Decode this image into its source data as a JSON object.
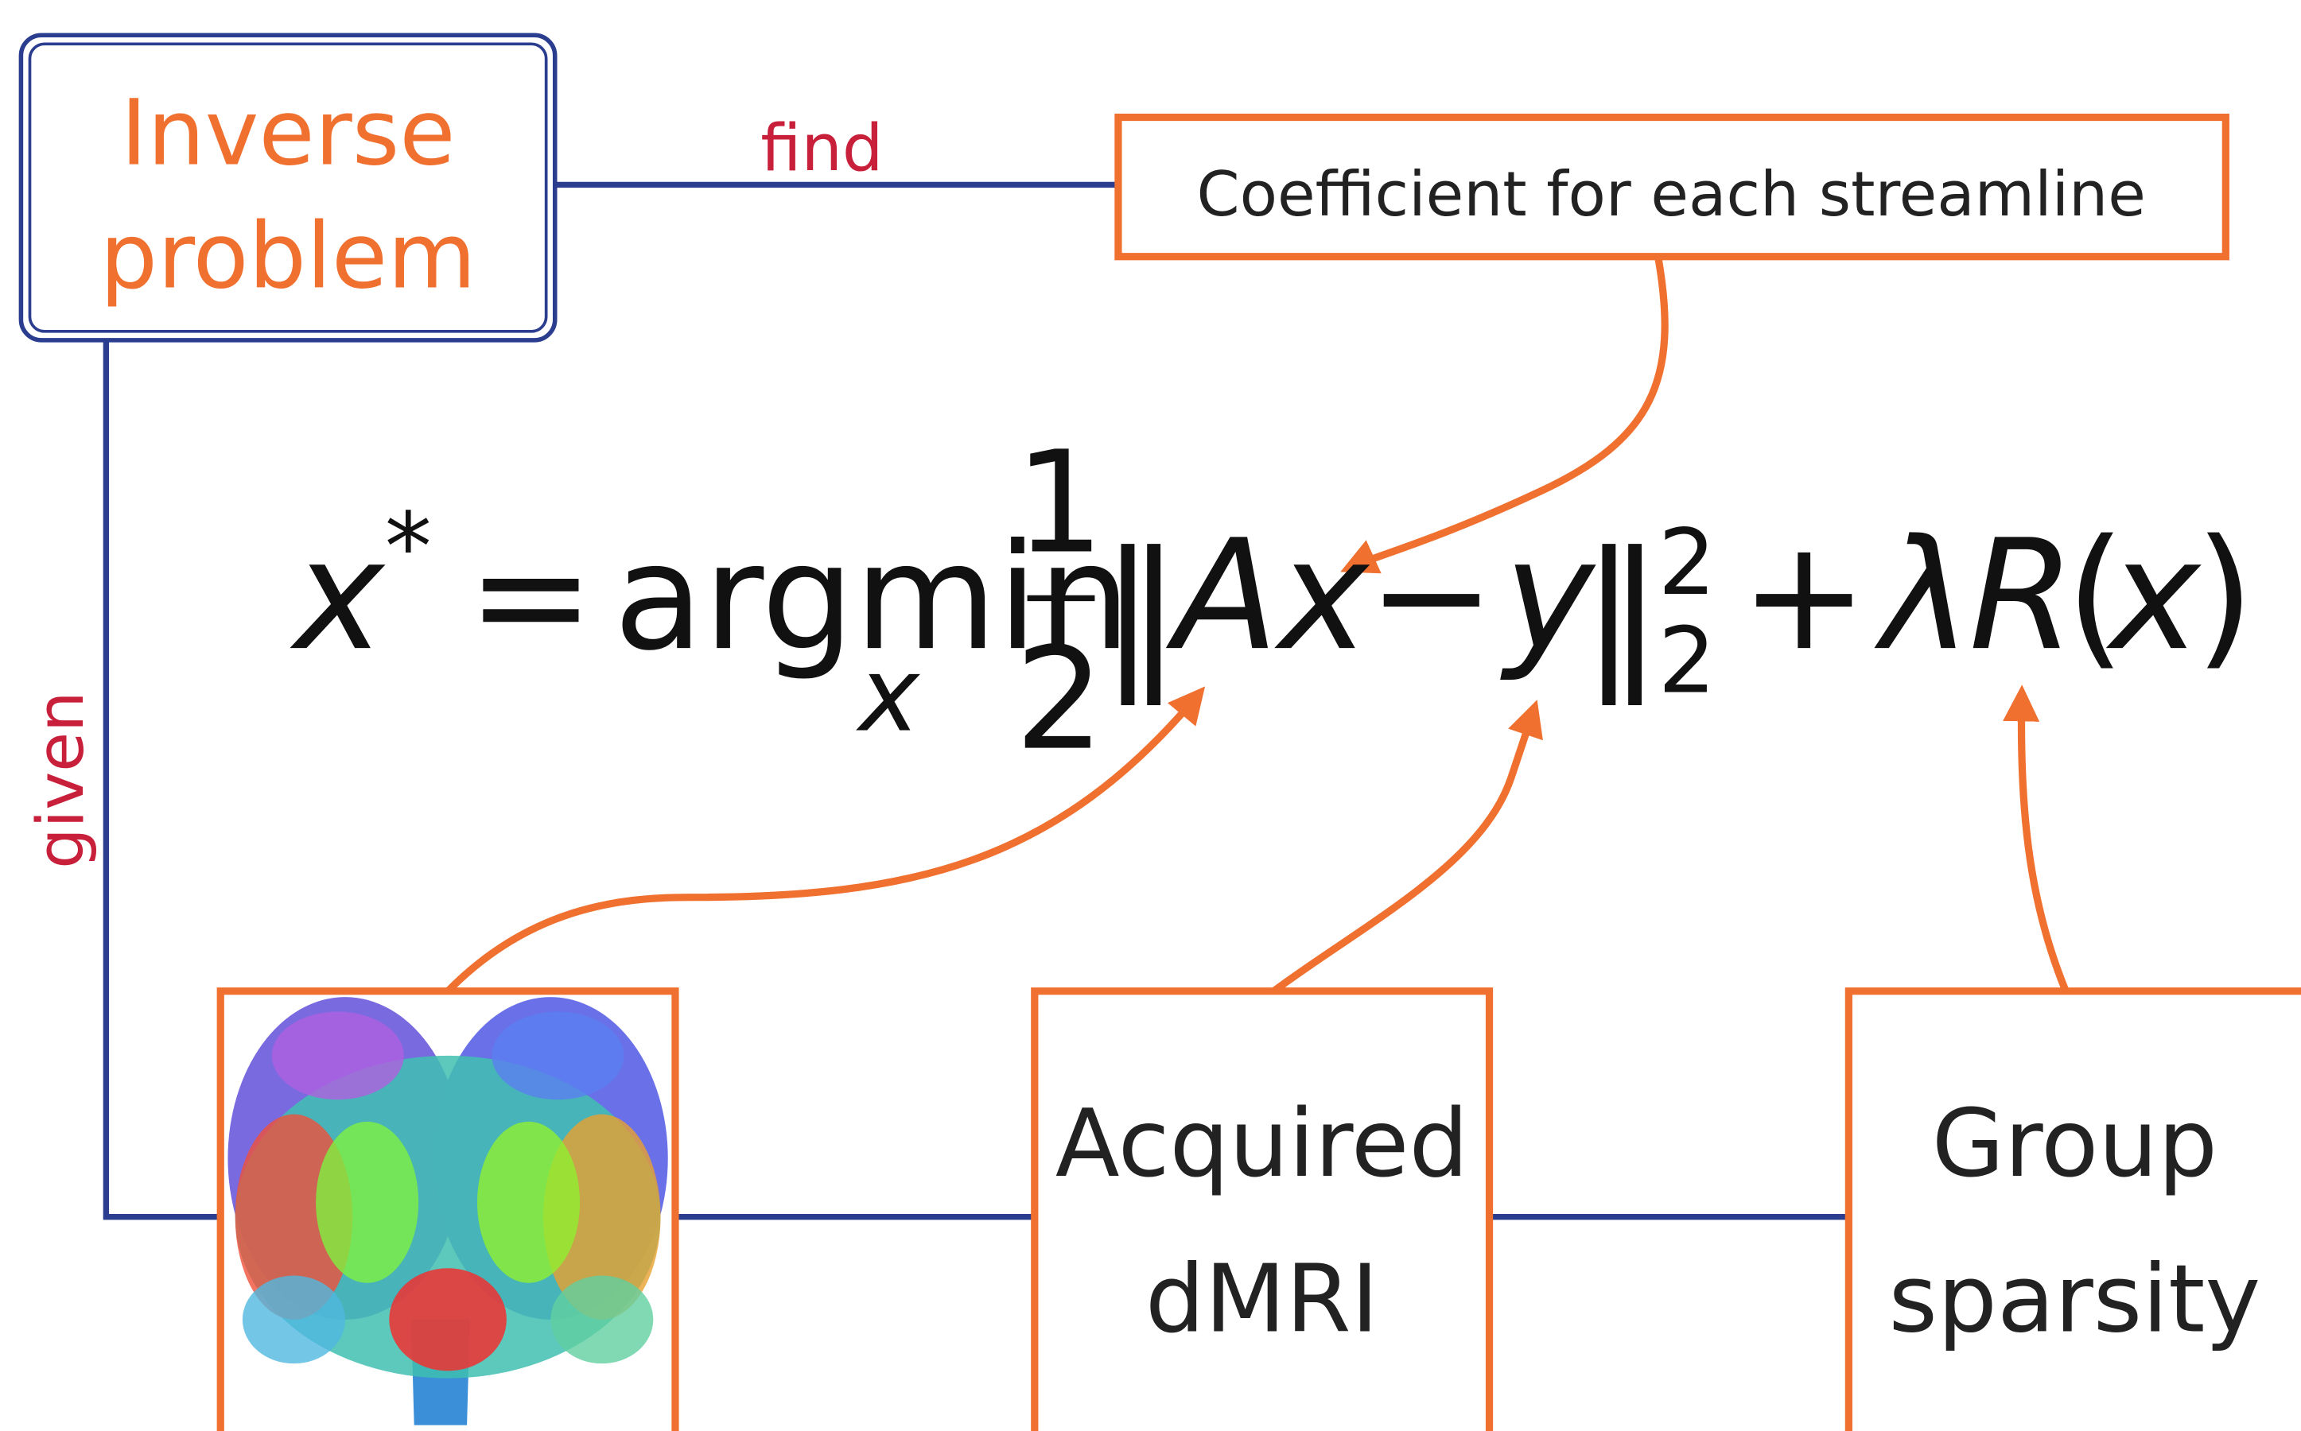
{
  "nodes": [
    {
      "label_lines": [
        "Inverse",
        "problem"
      ]
    },
    {
      "label_lines": [
        "Coefficient for each streamline"
      ]
    },
    {
      "label_lines": [
        "Acquired",
        "dMRI"
      ]
    },
    {
      "label_lines": [
        "Group",
        "sparsity"
      ]
    }
  ],
  "edges": [
    {
      "label": "find"
    },
    {
      "label": "given"
    }
  ],
  "formula": {
    "parts": [
      "x",
      "*",
      "=",
      "argmin",
      "x",
      "1",
      "2",
      "‖",
      "Ax",
      "−",
      "y",
      "‖",
      "2",
      "2",
      "+",
      "λ",
      "R",
      "(",
      "x",
      ")"
    ]
  }
}
